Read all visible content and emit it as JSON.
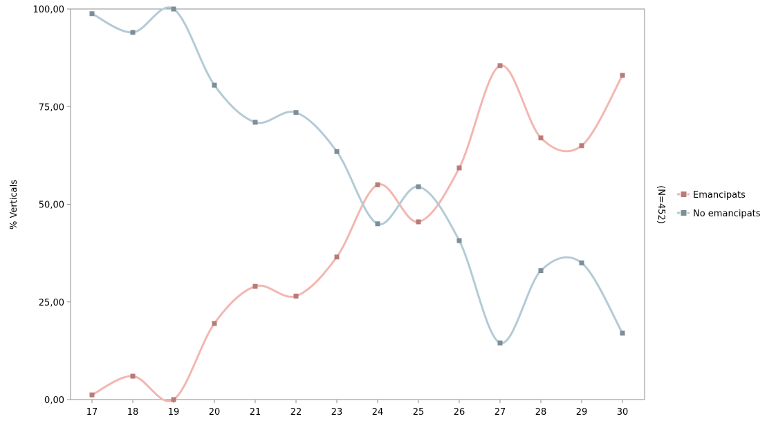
{
  "chart_data": {
    "type": "line",
    "title": "",
    "xlabel": "",
    "ylabel": "% Verticals",
    "note": "(N=452)",
    "categories": [
      "17",
      "18",
      "19",
      "20",
      "21",
      "22",
      "23",
      "24",
      "25",
      "26",
      "27",
      "28",
      "29",
      "30"
    ],
    "ylim": [
      0,
      100
    ],
    "yticks": [
      "0,00",
      "25,00",
      "50,00",
      "75,00",
      "100,00"
    ],
    "grid": false,
    "legend_position": "right",
    "smooth": true,
    "series": [
      {
        "name": "Emancipats",
        "line_color": "#f4b6b0",
        "marker_color": "#b87c78",
        "values": [
          1.2,
          6.0,
          0.0,
          19.5,
          29.0,
          26.5,
          36.5,
          55.0,
          45.5,
          59.3,
          85.5,
          67.0,
          65.0,
          83.0
        ]
      },
      {
        "name": "No emancipats",
        "line_color": "#b3cbd6",
        "marker_color": "#7d8e98",
        "values": [
          98.8,
          94.0,
          100.0,
          80.5,
          71.0,
          73.5,
          63.5,
          45.0,
          54.5,
          40.7,
          14.5,
          33.0,
          35.0,
          17.0
        ]
      }
    ]
  }
}
